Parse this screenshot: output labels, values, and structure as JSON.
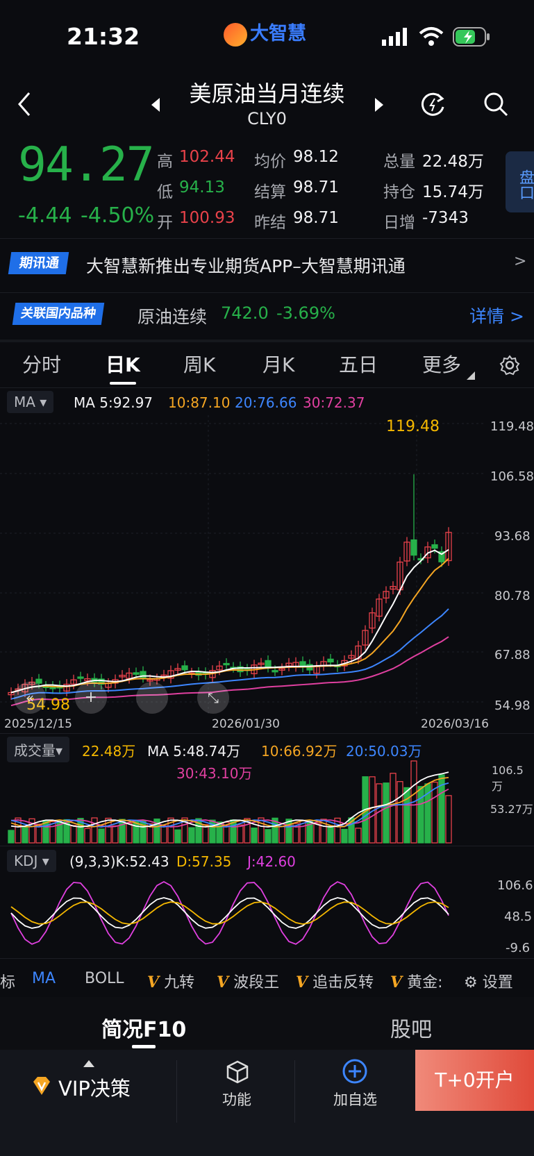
{
  "status_bar": {
    "time": "21:32",
    "app_logo": "大智慧"
  },
  "header": {
    "title": "美原油当月连续",
    "code": "CLY0"
  },
  "quote": {
    "price": "94.27",
    "change": "-4.44",
    "change_pct": "-4.50%",
    "stats": [
      {
        "label": "高",
        "value": "102.44",
        "color": "red"
      },
      {
        "label": "低",
        "value": "94.13",
        "color": "green"
      },
      {
        "label": "开",
        "value": "100.93",
        "color": "red"
      },
      {
        "label": "均价",
        "value": "98.12",
        "color": "white"
      },
      {
        "label": "结算",
        "value": "98.71",
        "color": "white"
      },
      {
        "label": "昨结",
        "value": "98.71",
        "color": "white"
      },
      {
        "label": "总量",
        "value": "22.48万",
        "color": "white"
      },
      {
        "label": "持仓",
        "value": "15.74万",
        "color": "white"
      },
      {
        "label": "日增",
        "value": "-7343",
        "color": "white"
      }
    ],
    "side_tab": "盘口"
  },
  "news": {
    "tag": "期讯通",
    "text": "大智慧新推出专业期货APP–大智慧期讯通",
    "arrow": ">"
  },
  "related": {
    "tag": "关联国内品种",
    "name": "原油连续",
    "price": "742.0",
    "pct": "-3.69%",
    "detail": "详情 >"
  },
  "tabs": [
    "分时",
    "日K",
    "周K",
    "月K",
    "五日",
    "更多"
  ],
  "active_tab": 1,
  "ma_legend": {
    "selector": "MA",
    "ma5": "MA 5:92.97",
    "ma10": "10:87.10",
    "ma20": "20:76.66",
    "ma30": "30:72.37"
  },
  "kline": {
    "y_labels": [
      "119.48",
      "106.58",
      "93.68",
      "80.78",
      "67.88",
      "54.98"
    ],
    "x_labels": [
      "2025/12/15",
      "2026/01/30",
      "2026/03/16"
    ],
    "max_label": "119.48",
    "min_label": "54.98"
  },
  "volume_legend": {
    "selector": "成交量",
    "vol": "22.48万",
    "ma5": "MA 5:48.74万",
    "ma10": "10:66.92万",
    "ma20": "20:50.03万",
    "ma30": "30:43.10万",
    "y_labels": [
      "106.5万",
      "53.27万"
    ]
  },
  "kdj_legend": {
    "selector": "KDJ",
    "params": "(9,3,3)K:52.43",
    "d": "D:57.35",
    "j": "J:42.60",
    "y_labels": [
      "106.6",
      "48.5",
      "-9.6"
    ]
  },
  "indicators": [
    "标",
    "MA",
    "BOLL",
    "九转",
    "波段王",
    "追击反转",
    "黄金:",
    "设置"
  ],
  "section_tabs": [
    "简况F10",
    "股吧"
  ],
  "bottom_bar": {
    "vip": "VIP决策",
    "func": "功能",
    "add": "加自选",
    "open": "T+0开户"
  },
  "colors": {
    "up": "#e8424a",
    "down": "#27b14a",
    "ma5": "#ffffff",
    "ma10": "#f5a623",
    "ma20": "#3d86ff",
    "ma30": "#e040a0",
    "accent": "#3d86ff"
  }
}
